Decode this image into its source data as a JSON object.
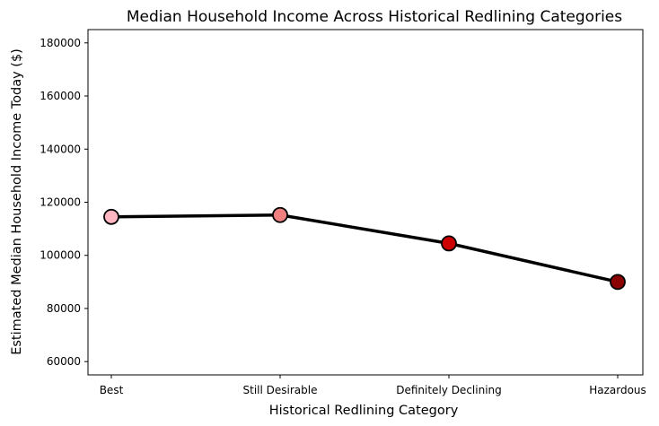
{
  "chart_data": {
    "type": "line",
    "title": "Median Household Income Across Historical Redlining Categories",
    "xlabel": "Historical Redlining Category",
    "ylabel": "Estimated Median Household Income Today ($)",
    "categories": [
      "Best",
      "Still Desirable",
      "Definitely Declining",
      "Hazardous"
    ],
    "values": [
      114500,
      115200,
      104500,
      90000
    ],
    "point_colors": [
      "#ffb6c1",
      "#f08080",
      "#cc0000",
      "#8b0000"
    ],
    "line_color": "#000000",
    "ylim": [
      55000,
      185000
    ],
    "yticks": [
      60000,
      80000,
      100000,
      120000,
      140000,
      160000,
      180000
    ],
    "grid": false
  }
}
